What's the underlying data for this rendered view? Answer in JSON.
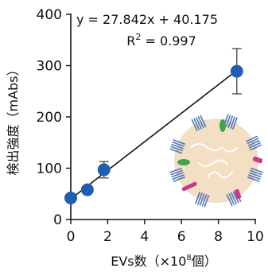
{
  "chart_data": {
    "type": "scatter",
    "x": [
      0,
      0.9,
      1.8,
      9.0
    ],
    "y": [
      42,
      58,
      97,
      289
    ],
    "y_err": [
      0,
      0,
      16,
      44
    ],
    "xlim": [
      0,
      10
    ],
    "ylim": [
      0,
      400
    ],
    "xticks": [
      "0",
      "2",
      "4",
      "6",
      "8",
      "10"
    ],
    "yticks": [
      "0",
      "100",
      "200",
      "300",
      "400"
    ],
    "xlabel": {
      "main": "EVs数（×10",
      "sup": "8",
      "tail": "個）"
    },
    "ylabel": "検出強度（mAbs）",
    "annotation": {
      "equation": "y = 27.842x + 40.175",
      "r2_prefix": "R",
      "r2_sup": "2",
      "r2_suffix": " = 0.997"
    },
    "fit": {
      "slope": 27.842,
      "intercept": 40.175,
      "x_range": [
        0,
        9.0
      ]
    },
    "grid": false,
    "colors": {
      "point": "#1f5fae",
      "fit_line": "#111111",
      "axis": "#111111",
      "error_bar": "#333333"
    }
  },
  "illustration": {
    "name": "extracellular-vesicle-illustration",
    "colors": {
      "vesicle_fill": "#f3dfc4",
      "vesicle_rim": "#e6c9a3",
      "receptor": "#5577b8",
      "green_protein": "#3fa548",
      "magenta_protein": "#c43c8e",
      "strand": "#ffffff"
    }
  }
}
